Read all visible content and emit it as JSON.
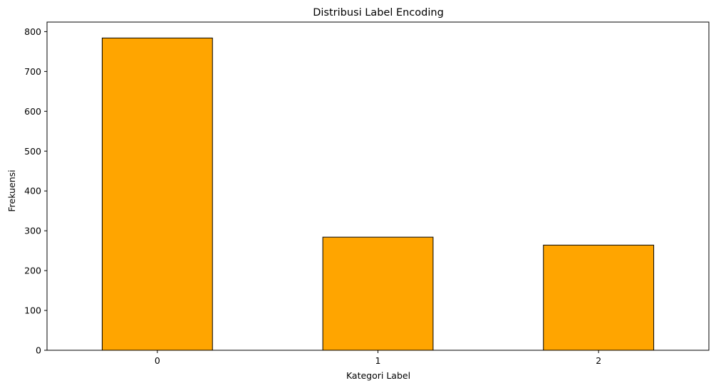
{
  "chart_data": {
    "type": "bar",
    "title": "Distribusi Label Encoding",
    "xlabel": "Kategori Label",
    "ylabel": "Frekuensi",
    "categories": [
      "0",
      "1",
      "2"
    ],
    "values": [
      784,
      284,
      264
    ],
    "ylim": [
      0,
      824
    ],
    "yticks": [
      0,
      100,
      200,
      300,
      400,
      500,
      600,
      700,
      800
    ],
    "grid": false,
    "bar_color": "#FFA500",
    "edge_color": "#000000"
  }
}
